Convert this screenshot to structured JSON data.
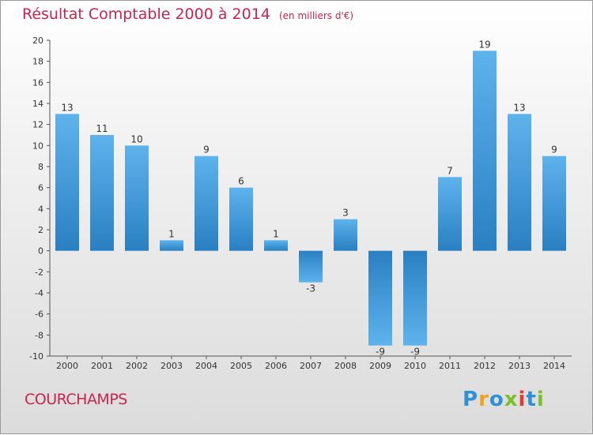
{
  "title": "Résultat Comptable 2000 à 2014",
  "unit": "(en milliers d'€)",
  "commune": "COURCHAMPS",
  "logo_text": "Proxiti",
  "colors": {
    "title": "#c7254e",
    "bar_light": "#5eb3ec",
    "bar_dark": "#2a7fc2",
    "logo": [
      "#2f8fd8",
      "#f0a31b",
      "#2f8fd8",
      "#7bbf2a",
      "#e23a2f",
      "#2f8fd8",
      "#7bbf2a"
    ]
  },
  "chart_data": {
    "type": "bar",
    "title": "Résultat Comptable 2000 à 2014",
    "ylabel": "(en milliers d'€)",
    "xlabel": "",
    "categories": [
      "2000",
      "2001",
      "2002",
      "2003",
      "2004",
      "2005",
      "2006",
      "2007",
      "2008",
      "2009",
      "2010",
      "2011",
      "2012",
      "2013",
      "2014"
    ],
    "values": [
      13,
      11,
      10,
      1,
      9,
      6,
      1,
      -3,
      3,
      -9,
      -9,
      7,
      19,
      13,
      9
    ],
    "ylim": [
      -10,
      20
    ],
    "yticks": [
      20,
      18,
      16,
      14,
      12,
      10,
      8,
      6,
      4,
      2,
      0,
      -2,
      -4,
      -6,
      -8,
      -10
    ],
    "grid": false
  }
}
